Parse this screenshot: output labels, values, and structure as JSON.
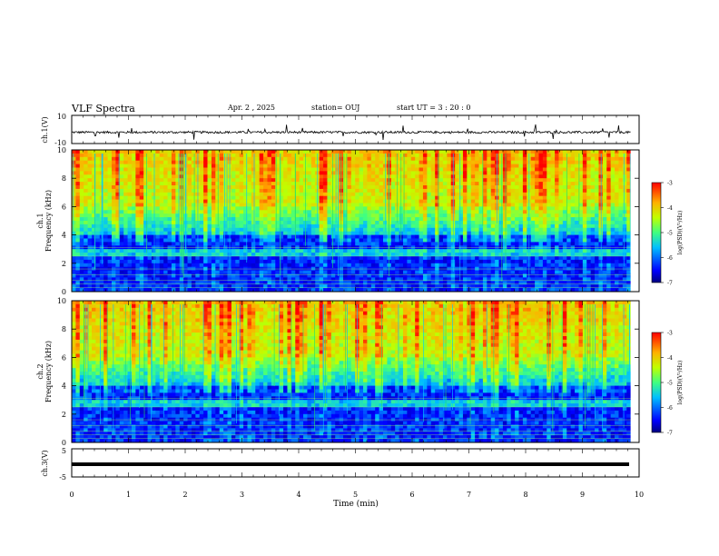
{
  "header": {
    "title": "VLF Spectra",
    "date": "Apr. 2 , 2025",
    "station": "station= OUJ",
    "start": "start UT = 3 : 20 : 0"
  },
  "chart_data": [
    {
      "type": "line",
      "ylabel": "ch.1(V)",
      "ylim": [
        -10,
        10
      ],
      "yticks": [
        10,
        -10
      ],
      "xlim": [
        0,
        10
      ],
      "description_of_signal": "noise trace near baseline ~-2 V with sparse negative spikes",
      "series": [
        {
          "values_baseline": -2.0,
          "noise_amplitude": 0.8
        }
      ]
    },
    {
      "type": "heatmap",
      "ylabel": "ch.1 Frequency (kHz)",
      "xlim": [
        0,
        9.85
      ],
      "ylim": [
        0,
        10
      ],
      "yticks": [
        0,
        2,
        4,
        6,
        8,
        10
      ],
      "colorbar": {
        "label": "log(PSD) (V²/Hz)",
        "ticks": [
          -3,
          -4,
          -5,
          -6,
          -7
        ],
        "range": [
          -7,
          -3
        ]
      }
    },
    {
      "type": "heatmap",
      "ylabel": "ch.2 Frequency (kHz)",
      "xlim": [
        0,
        9.85
      ],
      "ylim": [
        0,
        10
      ],
      "yticks": [
        0,
        2,
        4,
        6,
        8,
        10
      ],
      "colorbar": {
        "label": "log(PSD) (V²/Hz)",
        "ticks": [
          -3,
          -4,
          -5,
          -6,
          -7
        ],
        "range": [
          -7,
          -3
        ]
      }
    },
    {
      "type": "line",
      "ylabel": "ch.3(V)",
      "ylim": [
        -5,
        5
      ],
      "yticks": [
        5,
        -5
      ],
      "xlim": [
        0,
        10
      ],
      "series": [
        {
          "values_baseline": -0.2
        }
      ]
    }
  ],
  "xaxis": {
    "label": "Time (min)",
    "ticks": [
      "0",
      "1",
      "2",
      "3",
      "4",
      "5",
      "6",
      "7",
      "8",
      "9",
      "10"
    ],
    "range": [
      0,
      10
    ]
  },
  "colorbar_label": "log(PSD)(V²/Hz)",
  "colors": {
    "trace": "#000000",
    "cmap": [
      "#00007f",
      "#0000ff",
      "#007fff",
      "#00ffff",
      "#7fff7f",
      "#ffff00",
      "#ff7f00",
      "#ff0000"
    ]
  }
}
